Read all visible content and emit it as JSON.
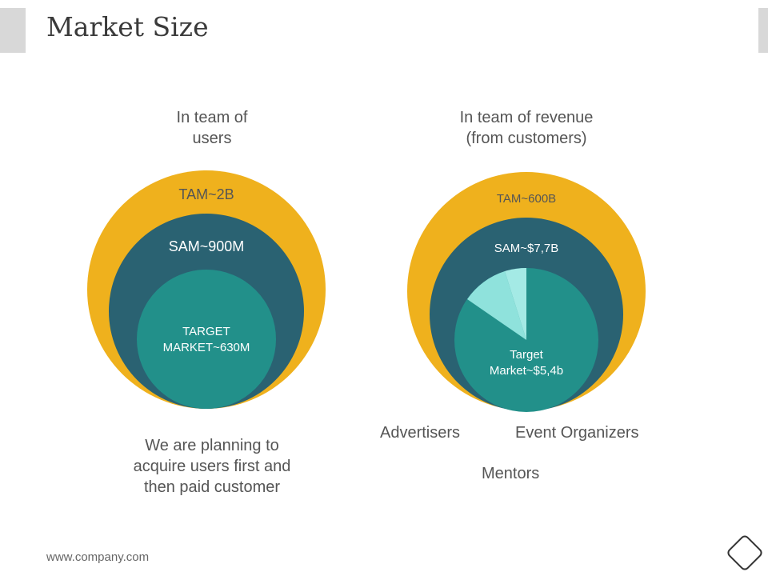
{
  "slide": {
    "title": "Market Size",
    "footer": "www.company.com"
  },
  "left_diagram": {
    "heading_line1": "In team of",
    "heading_line2": "users",
    "tam": "TAM~2B",
    "sam": "SAM~900M",
    "target_line1": "TARGET",
    "target_line2": "MARKET~630M",
    "note_line1": "We are planning to",
    "note_line2": "acquire users first and",
    "note_line3": "then paid customer"
  },
  "right_diagram": {
    "heading_line1": "In team of revenue",
    "heading_line2": "(from customers)",
    "tam": "TAM~600B",
    "sam": "SAM~$7,7B",
    "target_line1": "Target",
    "target_line2": "Market~$5,4b",
    "segments": [
      "Advertisers",
      "Event Organizers",
      "Mentors"
    ]
  },
  "colors": {
    "tam": "#efb11d",
    "sam": "#2a6272",
    "target": "#22908a",
    "slice_light": "#8fe2dc",
    "slice_lighter": "#a4eae5"
  }
}
